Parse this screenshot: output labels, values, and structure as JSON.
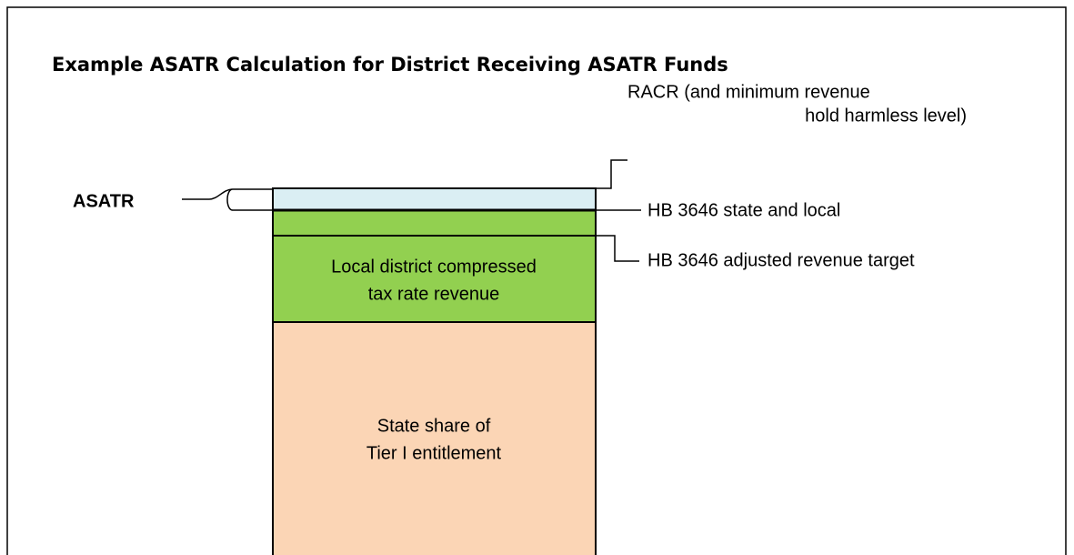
{
  "title": "Example ASATR Calculation for District Receiving ASATR Funds",
  "left_label": "ASATR",
  "segments": {
    "local": [
      "Local district compressed",
      "tax rate revenue"
    ],
    "state": [
      "State share of",
      "Tier I entitlement"
    ]
  },
  "annotations": {
    "racr": [
      "RACR (and minimum revenue",
      "hold harmless level)"
    ],
    "state_local": "HB 3646 state and local",
    "adjusted": "HB 3646 adjusted revenue target"
  }
}
